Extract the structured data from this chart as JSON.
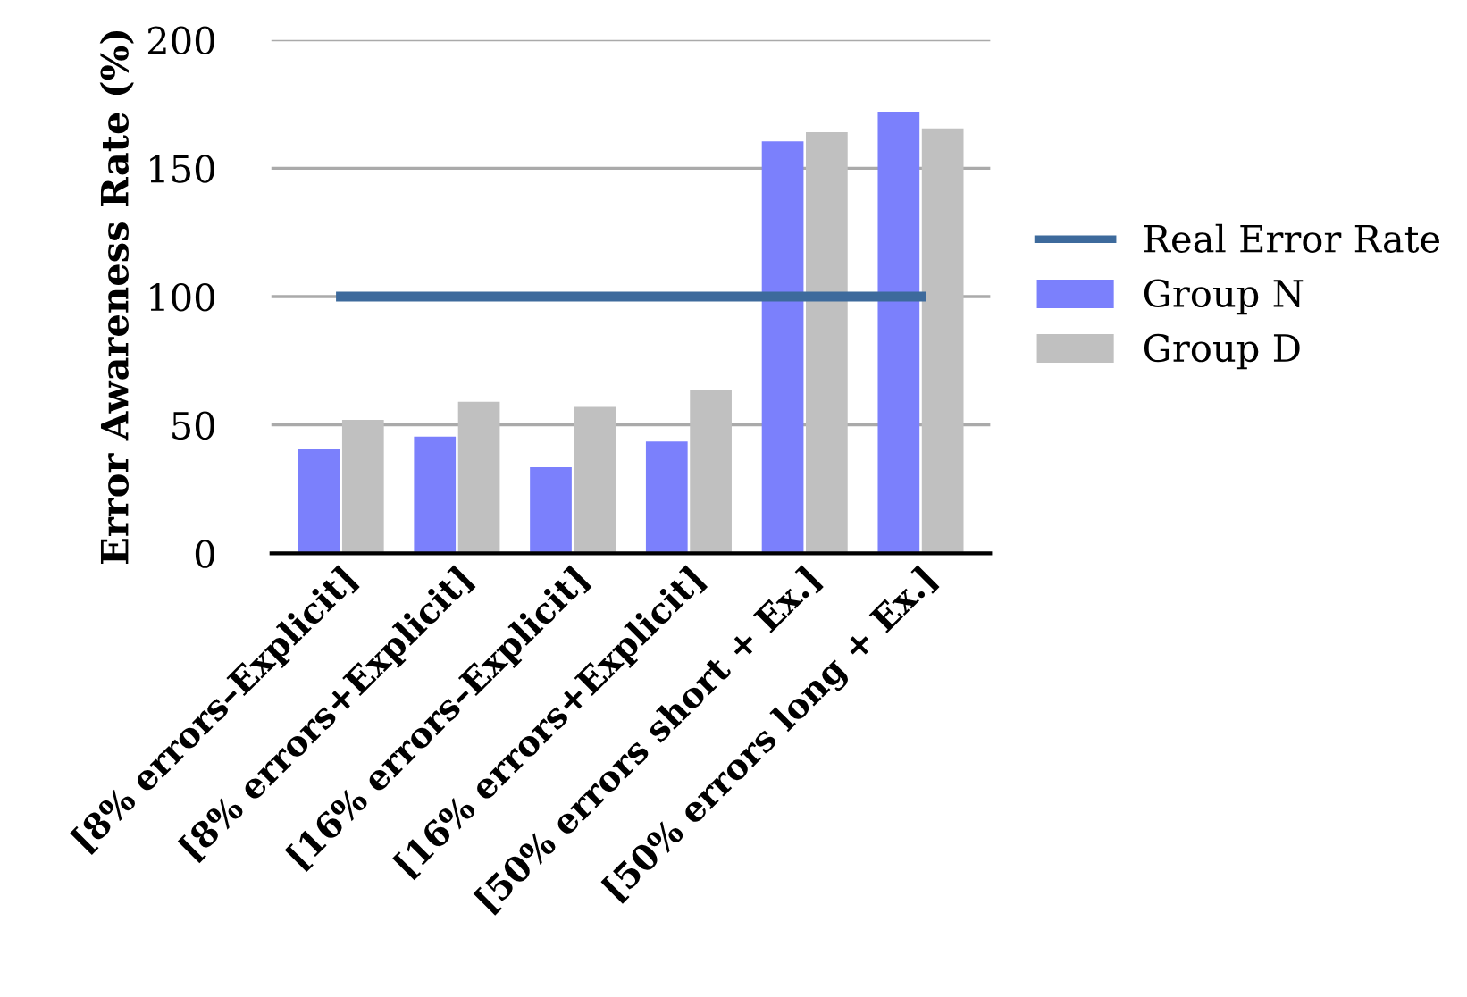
{
  "chart_data": {
    "type": "bar",
    "ylabel": "Error Awareness Rate (%)",
    "categories": [
      "[8% errors–Explicit]",
      "[8% errors+Explicit]",
      "[16% errors–Explicit]",
      "[16% errors+Explicit]",
      "[50% errors short + Ex.]",
      "[50% errors long + Ex.]"
    ],
    "series": [
      {
        "name": "Real Error Rate",
        "type": "line",
        "color": "#3d6a9c",
        "values": [
          100,
          100,
          100,
          100,
          100,
          100
        ]
      },
      {
        "name": "Group N",
        "color": "#7b80fc",
        "values": [
          40.5,
          45.5,
          33.5,
          43.5,
          160.5,
          172
        ]
      },
      {
        "name": "Group D",
        "color": "#c0c0c0",
        "values": [
          52,
          59,
          57,
          63.5,
          164,
          165.5
        ]
      }
    ],
    "ylim": [
      0,
      200
    ],
    "yticks": [
      0,
      50,
      100,
      150,
      200
    ],
    "grid": "y",
    "legend": "right",
    "marker": "none",
    "line_style": "solid"
  }
}
